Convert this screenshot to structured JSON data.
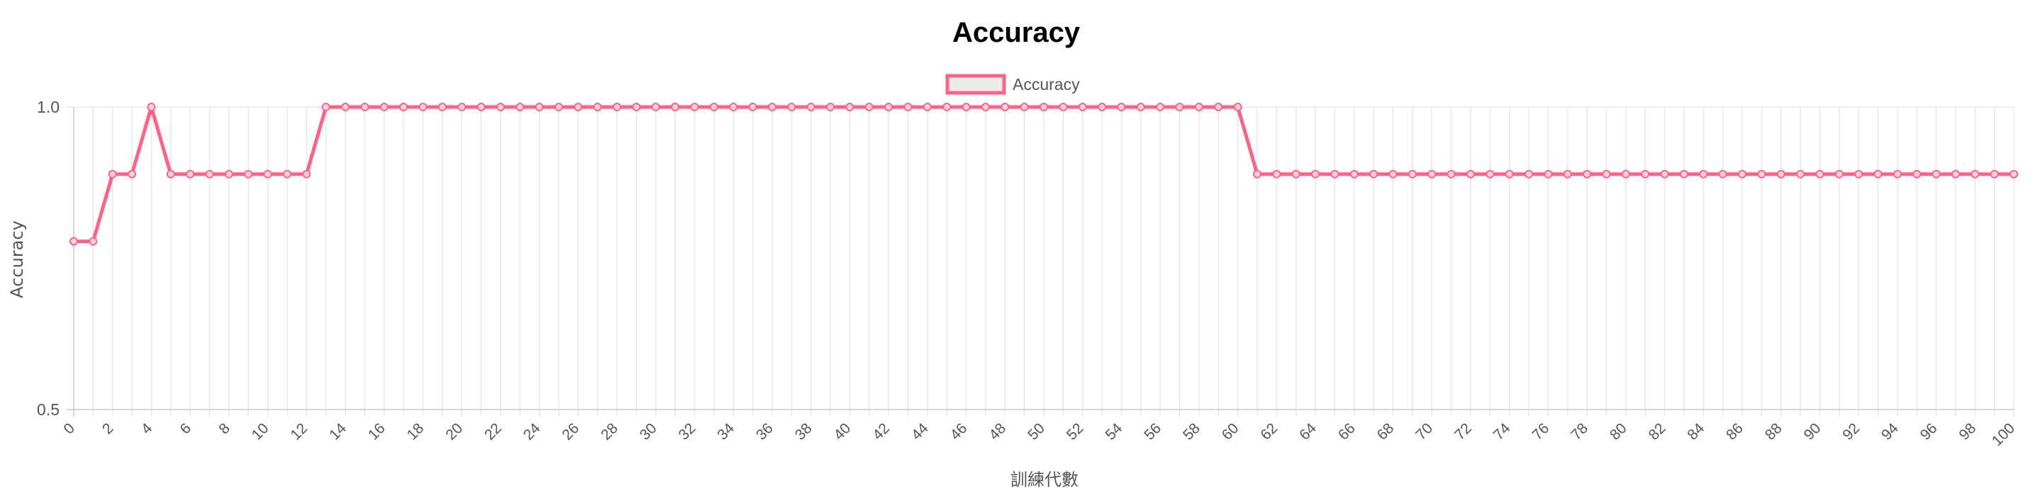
{
  "chart_data": {
    "type": "line",
    "title": "Accuracy",
    "xlabel": "訓練代數",
    "ylabel": "Accuracy",
    "x_range": [
      0,
      100
    ],
    "ylim": [
      0.5,
      1.0
    ],
    "y_ticks": [
      "1.0",
      "0.5"
    ],
    "grid": true,
    "legend_position": "top-center",
    "series": [
      {
        "name": "Accuracy",
        "color": "#ff6384",
        "fill_color": "#ebebeb",
        "values": [
          0.778,
          0.778,
          0.889,
          0.889,
          1.0,
          0.889,
          0.889,
          0.889,
          0.889,
          0.889,
          0.889,
          0.889,
          0.889,
          1.0,
          1.0,
          1.0,
          1.0,
          1.0,
          1.0,
          1.0,
          1.0,
          1.0,
          1.0,
          1.0,
          1.0,
          1.0,
          1.0,
          1.0,
          1.0,
          1.0,
          1.0,
          1.0,
          1.0,
          1.0,
          1.0,
          1.0,
          1.0,
          1.0,
          1.0,
          1.0,
          1.0,
          1.0,
          1.0,
          1.0,
          1.0,
          1.0,
          1.0,
          1.0,
          1.0,
          1.0,
          1.0,
          1.0,
          1.0,
          1.0,
          1.0,
          1.0,
          1.0,
          1.0,
          1.0,
          1.0,
          1.0,
          0.889,
          0.889,
          0.889,
          0.889,
          0.889,
          0.889,
          0.889,
          0.889,
          0.889,
          0.889,
          0.889,
          0.889,
          0.889,
          0.889,
          0.889,
          0.889,
          0.889,
          0.889,
          0.889,
          0.889,
          0.889,
          0.889,
          0.889,
          0.889,
          0.889,
          0.889,
          0.889,
          0.889,
          0.889,
          0.889,
          0.889,
          0.889,
          0.889,
          0.889,
          0.889,
          0.889,
          0.889,
          0.889,
          0.889,
          0.889
        ]
      }
    ]
  }
}
